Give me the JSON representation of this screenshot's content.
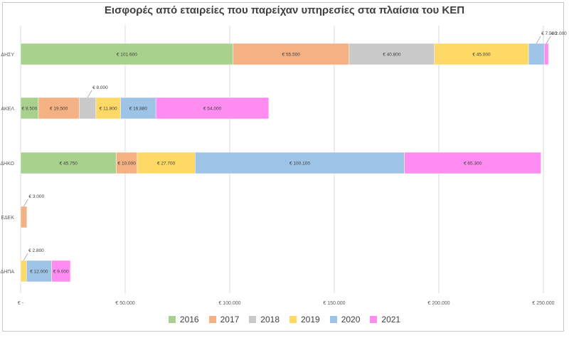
{
  "chart_data": {
    "type": "bar",
    "orientation": "horizontal",
    "stacked": true,
    "title": "Εισφορές από εταιρείες που παρείχαν υπηρεσίες στα πλαίσια του ΚΕΠ",
    "categories": [
      "ΔΗΣΥ",
      "ΑΚΕΛ",
      "ΔΗΚΟ",
      "ΕΔΕΚ",
      "ΔΗΠΑ"
    ],
    "series": [
      {
        "name": "2016",
        "color": "#a9d18e",
        "values": [
          101600,
          8500,
          45750,
          0,
          0
        ]
      },
      {
        "name": "2017",
        "color": "#f4b183",
        "values": [
          55500,
          19500,
          10000,
          3000,
          0
        ]
      },
      {
        "name": "2018",
        "color": "#c9c9c9",
        "values": [
          40800,
          8000,
          0,
          0,
          0
        ]
      },
      {
        "name": "2019",
        "color": "#ffd966",
        "values": [
          45000,
          11800,
          27700,
          0,
          2800
        ]
      },
      {
        "name": "2020",
        "color": "#9dc3e6",
        "values": [
          7500,
          16880,
          100100,
          0,
          12000
        ]
      },
      {
        "name": "2021",
        "color": "#ff8cf0",
        "values": [
          2000,
          54000,
          65300,
          0,
          9000
        ]
      }
    ],
    "data_labels": [
      [
        "€ 101.600",
        "€ 55.500",
        "€ 40.800",
        "€ 45.000",
        "€ 7.500",
        "€ 2.000"
      ],
      [
        "€ 8.500",
        "€ 19.500",
        "€ 8.000",
        "€ 11.800",
        "€ 16.880",
        "€ 54.000"
      ],
      [
        "€ 45.750",
        "€ 10.000",
        "",
        "€ 27.700",
        "€ 100.100",
        "€ 65.300"
      ],
      [
        "",
        "€ 3.000",
        "",
        "",
        "",
        ""
      ],
      [
        "",
        "",
        "",
        "€ 2.800",
        "€ 12.000",
        "€ 9.000"
      ]
    ],
    "xlim": [
      0,
      250000
    ],
    "x_ticks": [
      0,
      50000,
      100000,
      150000,
      200000,
      250000
    ],
    "x_tick_labels": [
      "€ -",
      "€ 50.000",
      "€ 100.000",
      "€ 150.000",
      "€ 200.000",
      "€ 250.000"
    ],
    "grid": true,
    "legend_position": "bottom"
  }
}
